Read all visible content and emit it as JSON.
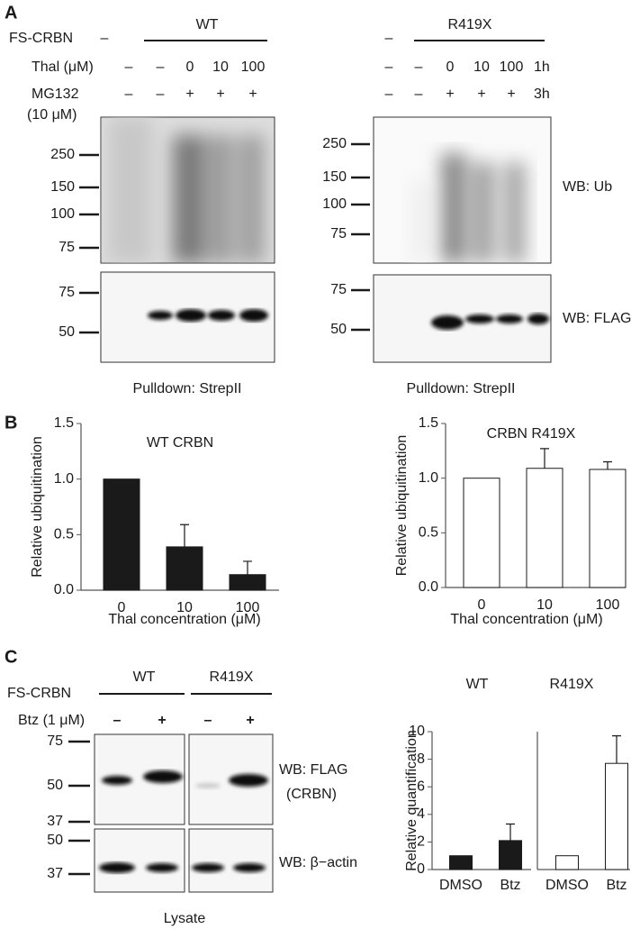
{
  "panel_labels": [
    "A",
    "B",
    "C"
  ],
  "panel_a": {
    "left": {
      "construct_label": "FS-CRBN",
      "construct_dash": "–",
      "construct": "WT",
      "thal_label": "Thal (μM)",
      "thal": [
        "–",
        "–",
        "0",
        "10",
        "100"
      ],
      "mg_label": "MG132",
      "mg_conc": "(10 μM)",
      "mg": [
        "–",
        "–",
        "+",
        "+",
        "+"
      ],
      "ub_markers": [
        "250",
        "150",
        "100",
        "75"
      ],
      "flag_markers": [
        "75",
        "50"
      ],
      "footer": "Pulldown: StrepII"
    },
    "right": {
      "construct_dash": "–",
      "construct": "R419X",
      "thal": [
        "–",
        "–",
        "0",
        "10",
        "100"
      ],
      "thal_time": "1h",
      "mg": [
        "–",
        "–",
        "+",
        "+",
        "+"
      ],
      "mg_time": "3h",
      "ub_markers": [
        "250",
        "150",
        "100",
        "75"
      ],
      "flag_markers": [
        "75",
        "50"
      ],
      "footer": "Pulldown: StrepII",
      "wb_ub": "WB: Ub",
      "wb_flag": "WB: FLAG"
    }
  },
  "panel_c": {
    "construct_label": "FS-CRBN",
    "constructs": [
      "WT",
      "R419X"
    ],
    "btz_label": "Btz (1 μM)",
    "btz": [
      "–",
      "+",
      "–",
      "+"
    ],
    "flag_markers": [
      "75",
      "50",
      "37"
    ],
    "actin_markers": [
      "50",
      "37"
    ],
    "wb_flag": "WB: FLAG",
    "wb_flag_sub": "(CRBN)",
    "wb_actin": "WB: β−actin",
    "footer": "Lysate"
  },
  "chart_data": [
    {
      "type": "bar",
      "title": "WT CRBN",
      "ylabel": "Relative ubiquitination",
      "xlabel": "Thal concentration (μM)",
      "categories": [
        "0",
        "10",
        "100"
      ],
      "values": [
        1.0,
        0.39,
        0.14
      ],
      "errors": [
        null,
        0.2,
        0.12
      ],
      "color": "#1a1a1a",
      "ylim": [
        0,
        1.5
      ],
      "yticks": [
        {
          "value": 0,
          "label": "0.0"
        },
        {
          "value": 0.5,
          "label": "0.5"
        },
        {
          "value": 1,
          "label": "1.0"
        },
        {
          "value": 1.5,
          "label": "1.5"
        }
      ]
    },
    {
      "type": "bar",
      "title": "CRBN R419X",
      "ylabel": "Relative ubiquitination",
      "xlabel": "Thal concentration (μM)",
      "categories": [
        "0",
        "10",
        "100"
      ],
      "values": [
        1.0,
        1.09,
        1.08
      ],
      "errors": [
        null,
        0.18,
        0.07
      ],
      "color": "#ffffff",
      "ylim": [
        0,
        1.5
      ],
      "yticks": [
        {
          "value": 0,
          "label": "0.0"
        },
        {
          "value": 0.5,
          "label": "0.5"
        },
        {
          "value": 1,
          "label": "1.0"
        },
        {
          "value": 1.5,
          "label": "1.5"
        }
      ]
    },
    {
      "type": "bar",
      "title": "WT",
      "ylabel": "Relative quantification",
      "categories": [
        "DMSO",
        "Btz"
      ],
      "values": [
        1.0,
        2.1
      ],
      "errors": [
        null,
        1.2
      ],
      "color": "#1a1a1a",
      "ylim": [
        0,
        10
      ],
      "yticks": [
        0,
        2,
        4,
        6,
        8,
        10
      ]
    },
    {
      "type": "bar",
      "title": "R419X",
      "categories": [
        "DMSO",
        "Btz"
      ],
      "values": [
        1.0,
        7.7
      ],
      "errors": [
        null,
        2.0
      ],
      "color": "#ffffff",
      "ylim": [
        0,
        10
      ]
    }
  ]
}
